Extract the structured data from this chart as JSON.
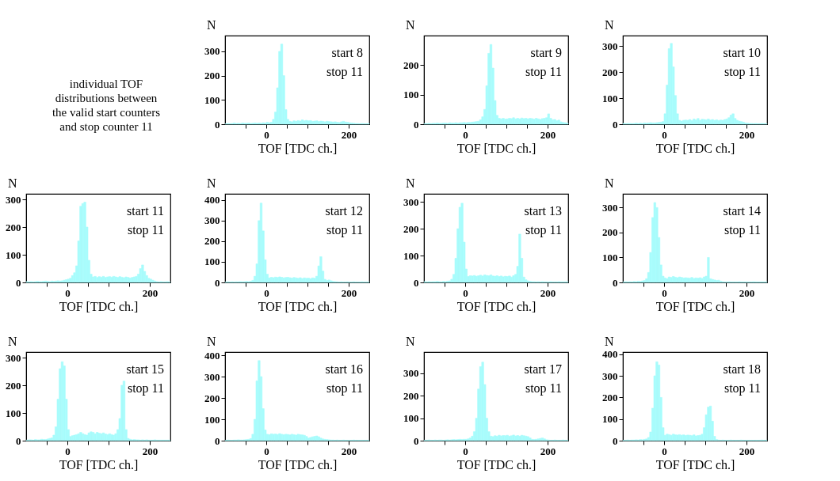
{
  "chart_data": [
    {
      "type": "other",
      "annotations": [
        "individual TOF\ndistributions between\nthe valid start counters\nand stop counter 11"
      ]
    },
    {
      "type": "histogram",
      "color": "#a8fcfc",
      "xlabel": "TOF   [TDC ch.]",
      "ylabel": "N",
      "annotations": [
        "start  8",
        "stop 11"
      ],
      "xlim": [
        -100,
        250
      ],
      "ylim": [
        0,
        365
      ],
      "xticks": [
        {
          "value": -50,
          "label": null
        },
        0,
        {
          "value": 50,
          "label": null
        },
        {
          "value": 100,
          "label": null
        },
        {
          "value": 150,
          "label": null
        },
        200
      ],
      "yticks": [
        0,
        100,
        200,
        300
      ],
      "bins": [
        -100,
        -95,
        -90,
        -85,
        -80,
        -75,
        -70,
        -65,
        -60,
        -55,
        -50,
        -45,
        -40,
        -35,
        -30,
        -25,
        -20,
        -15,
        -10,
        -5,
        0,
        5,
        10,
        15,
        20,
        25,
        30,
        35,
        40,
        45,
        50,
        55,
        60,
        65,
        70,
        75,
        80,
        85,
        90,
        95,
        100,
        105,
        110,
        115,
        120,
        125,
        130,
        135,
        140,
        145,
        150,
        155,
        160,
        165,
        170,
        175,
        180,
        185,
        190,
        195,
        200,
        205,
        210,
        215,
        220,
        225,
        230,
        235,
        240,
        245,
        250
      ],
      "values": [
        2,
        3,
        2,
        3,
        5,
        3,
        4,
        3,
        5,
        4,
        4,
        5,
        3,
        4,
        5,
        4,
        5,
        4,
        6,
        5,
        8,
        6,
        8,
        20,
        50,
        150,
        300,
        330,
        200,
        60,
        20,
        12,
        10,
        14,
        12,
        15,
        13,
        18,
        14,
        16,
        14,
        15,
        12,
        13,
        14,
        11,
        13,
        12,
        10,
        12,
        11,
        10,
        9,
        10,
        8,
        7,
        10,
        12,
        9,
        8,
        6,
        5,
        4,
        3,
        3,
        2,
        3,
        2,
        2,
        3
      ]
    },
    {
      "type": "histogram",
      "color": "#a8fcfc",
      "xlabel": "TOF   [TDC ch.]",
      "ylabel": "N",
      "annotations": [
        "start  9",
        "stop 11"
      ],
      "xlim": [
        -100,
        250
      ],
      "ylim": [
        0,
        300
      ],
      "xticks": [
        {
          "value": -50,
          "label": null
        },
        0,
        {
          "value": 50,
          "label": null
        },
        {
          "value": 100,
          "label": null
        },
        {
          "value": 150,
          "label": null
        },
        200
      ],
      "yticks": [
        0,
        100,
        200
      ],
      "bins": [
        -100,
        -95,
        -90,
        -85,
        -80,
        -75,
        -70,
        -65,
        -60,
        -55,
        -50,
        -45,
        -40,
        -35,
        -30,
        -25,
        -20,
        -15,
        -10,
        -5,
        0,
        5,
        10,
        15,
        20,
        25,
        30,
        35,
        40,
        45,
        50,
        55,
        60,
        65,
        70,
        75,
        80,
        85,
        90,
        95,
        100,
        105,
        110,
        115,
        120,
        125,
        130,
        135,
        140,
        145,
        150,
        155,
        160,
        165,
        170,
        175,
        180,
        185,
        190,
        195,
        200,
        205,
        210,
        215,
        220,
        225,
        230,
        235,
        240,
        245,
        250
      ],
      "values": [
        2,
        2,
        3,
        2,
        3,
        3,
        4,
        3,
        3,
        4,
        4,
        3,
        5,
        4,
        4,
        5,
        4,
        5,
        5,
        6,
        5,
        6,
        6,
        7,
        8,
        9,
        10,
        15,
        25,
        50,
        130,
        240,
        270,
        190,
        80,
        30,
        20,
        18,
        20,
        17,
        18,
        20,
        19,
        22,
        18,
        20,
        18,
        21,
        19,
        20,
        18,
        20,
        19,
        17,
        20,
        18,
        16,
        19,
        20,
        22,
        35,
        20,
        15,
        16,
        12,
        14,
        8,
        6,
        5,
        4
      ]
    },
    {
      "type": "histogram",
      "color": "#a8fcfc",
      "xlabel": "TOF   [TDC ch.]",
      "ylabel": "N",
      "annotations": [
        "start 10",
        "stop 11"
      ],
      "xlim": [
        -100,
        250
      ],
      "ylim": [
        0,
        340
      ],
      "xticks": [
        {
          "value": -50,
          "label": null
        },
        0,
        {
          "value": 50,
          "label": null
        },
        {
          "value": 100,
          "label": null
        },
        {
          "value": 150,
          "label": null
        },
        200
      ],
      "yticks": [
        0,
        100,
        200,
        300
      ],
      "bins": [
        -100,
        -95,
        -90,
        -85,
        -80,
        -75,
        -70,
        -65,
        -60,
        -55,
        -50,
        -45,
        -40,
        -35,
        -30,
        -25,
        -20,
        -15,
        -10,
        -5,
        0,
        5,
        10,
        15,
        20,
        25,
        30,
        35,
        40,
        45,
        50,
        55,
        60,
        65,
        70,
        75,
        80,
        85,
        90,
        95,
        100,
        105,
        110,
        115,
        120,
        125,
        130,
        135,
        140,
        145,
        150,
        155,
        160,
        165,
        170,
        175,
        180,
        185,
        190,
        195,
        200,
        205,
        210,
        215,
        220,
        225,
        230,
        235,
        240,
        245,
        250
      ],
      "values": [
        3,
        2,
        3,
        3,
        2,
        3,
        4,
        3,
        4,
        3,
        5,
        4,
        5,
        6,
        5,
        5,
        6,
        7,
        8,
        10,
        40,
        150,
        290,
        310,
        220,
        110,
        40,
        15,
        12,
        15,
        16,
        15,
        18,
        14,
        20,
        17,
        22,
        15,
        19,
        18,
        17,
        20,
        16,
        18,
        15,
        17,
        14,
        16,
        15,
        18,
        20,
        25,
        35,
        40,
        22,
        15,
        12,
        10,
        8,
        5,
        4,
        3,
        3,
        2,
        3,
        2,
        2,
        3,
        2,
        2
      ]
    },
    {
      "type": "histogram",
      "color": "#a8fcfc",
      "xlabel": "TOF   [TDC ch.]",
      "ylabel": "N",
      "annotations": [
        "start 11",
        "stop 11"
      ],
      "xlim": [
        -100,
        250
      ],
      "ylim": [
        0,
        320
      ],
      "xticks": [
        {
          "value": -50,
          "label": null
        },
        0,
        {
          "value": 50,
          "label": null
        },
        {
          "value": 100,
          "label": null
        },
        {
          "value": 150,
          "label": null
        },
        200
      ],
      "yticks": [
        0,
        100,
        200,
        300
      ],
      "bins": [
        -100,
        -95,
        -90,
        -85,
        -80,
        -75,
        -70,
        -65,
        -60,
        -55,
        -50,
        -45,
        -40,
        -35,
        -30,
        -25,
        -20,
        -15,
        -10,
        -5,
        0,
        5,
        10,
        15,
        20,
        25,
        30,
        35,
        40,
        45,
        50,
        55,
        60,
        65,
        70,
        75,
        80,
        85,
        90,
        95,
        100,
        105,
        110,
        115,
        120,
        125,
        130,
        135,
        140,
        145,
        150,
        155,
        160,
        165,
        170,
        175,
        180,
        185,
        190,
        195,
        200,
        205,
        210,
        215,
        220,
        225,
        230,
        235,
        240,
        245,
        250
      ],
      "values": [
        3,
        2,
        3,
        2,
        3,
        4,
        3,
        3,
        4,
        5,
        4,
        3,
        5,
        4,
        5,
        6,
        5,
        6,
        8,
        10,
        12,
        15,
        25,
        35,
        60,
        150,
        275,
        285,
        290,
        200,
        80,
        30,
        20,
        22,
        18,
        21,
        19,
        22,
        18,
        20,
        21,
        19,
        22,
        20,
        18,
        21,
        19,
        17,
        20,
        18,
        16,
        18,
        20,
        22,
        30,
        50,
        63,
        40,
        25,
        15,
        12,
        8,
        5,
        3,
        2,
        3,
        2,
        2,
        3,
        2
      ]
    },
    {
      "type": "histogram",
      "color": "#a8fcfc",
      "xlabel": "TOF   [TDC ch.]",
      "ylabel": "N",
      "annotations": [
        "start 12",
        "stop 11"
      ],
      "xlim": [
        -100,
        250
      ],
      "ylim": [
        0,
        430
      ],
      "xticks": [
        {
          "value": -50,
          "label": null
        },
        0,
        {
          "value": 50,
          "label": null
        },
        {
          "value": 100,
          "label": null
        },
        {
          "value": 150,
          "label": null
        },
        200
      ],
      "yticks": [
        0,
        100,
        200,
        300,
        400
      ],
      "bins": [
        -100,
        -95,
        -90,
        -85,
        -80,
        -75,
        -70,
        -65,
        -60,
        -55,
        -50,
        -45,
        -40,
        -35,
        -30,
        -25,
        -20,
        -15,
        -10,
        -5,
        0,
        5,
        10,
        15,
        20,
        25,
        30,
        35,
        40,
        45,
        50,
        55,
        60,
        65,
        70,
        75,
        80,
        85,
        90,
        95,
        100,
        105,
        110,
        115,
        120,
        125,
        130,
        135,
        140,
        145,
        150,
        155,
        160,
        165,
        170,
        175,
        180,
        185,
        190,
        195,
        200,
        205,
        210,
        215,
        220,
        225,
        230,
        235,
        240,
        245,
        250
      ],
      "values": [
        2,
        3,
        2,
        3,
        2,
        3,
        3,
        4,
        3,
        4,
        5,
        4,
        6,
        10,
        30,
        90,
        300,
        385,
        250,
        110,
        40,
        22,
        25,
        23,
        26,
        24,
        27,
        25,
        22,
        24,
        25,
        23,
        21,
        24,
        22,
        20,
        23,
        19,
        22,
        20,
        21,
        18,
        22,
        20,
        30,
        80,
        125,
        55,
        15,
        10,
        12,
        8,
        5,
        4,
        3,
        2,
        3,
        2,
        2,
        3,
        2,
        2,
        3,
        2,
        2,
        2,
        3,
        2,
        2,
        2
      ]
    },
    {
      "type": "histogram",
      "color": "#a8fcfc",
      "xlabel": "TOF   [TDC ch.]",
      "ylabel": "N",
      "annotations": [
        "start 13",
        "stop 11"
      ],
      "xlim": [
        -100,
        250
      ],
      "ylim": [
        0,
        330
      ],
      "xticks": [
        {
          "value": -50,
          "label": null
        },
        0,
        {
          "value": 50,
          "label": null
        },
        {
          "value": 100,
          "label": null
        },
        {
          "value": 150,
          "label": null
        },
        200
      ],
      "yticks": [
        0,
        100,
        200,
        300
      ],
      "bins": [
        -100,
        -95,
        -90,
        -85,
        -80,
        -75,
        -70,
        -65,
        -60,
        -55,
        -50,
        -45,
        -40,
        -35,
        -30,
        -25,
        -20,
        -15,
        -10,
        -5,
        0,
        5,
        10,
        15,
        20,
        25,
        30,
        35,
        40,
        45,
        50,
        55,
        60,
        65,
        70,
        75,
        80,
        85,
        90,
        95,
        100,
        105,
        110,
        115,
        120,
        125,
        130,
        135,
        140,
        145,
        150,
        155,
        160,
        165,
        170,
        175,
        180,
        185,
        190,
        195,
        200,
        205,
        210,
        215,
        220,
        225,
        230,
        235,
        240,
        245,
        250
      ],
      "values": [
        3,
        2,
        3,
        2,
        3,
        3,
        4,
        3,
        2,
        4,
        3,
        5,
        6,
        12,
        30,
        90,
        200,
        280,
        295,
        150,
        50,
        22,
        25,
        24,
        26,
        23,
        25,
        27,
        24,
        28,
        26,
        25,
        28,
        24,
        23,
        25,
        22,
        24,
        21,
        23,
        22,
        24,
        20,
        25,
        30,
        60,
        180,
        90,
        20,
        10,
        6,
        4,
        3,
        3,
        2,
        3,
        2,
        3,
        2,
        2,
        2,
        3,
        2,
        2,
        2,
        3,
        2,
        2,
        2,
        2
      ]
    },
    {
      "type": "histogram",
      "color": "#a8fcfc",
      "xlabel": "TOF   [TDC ch.]",
      "ylabel": "N",
      "annotations": [
        "start 14",
        "stop 11"
      ],
      "xlim": [
        -100,
        250
      ],
      "ylim": [
        0,
        355
      ],
      "xticks": [
        {
          "value": -50,
          "label": null
        },
        0,
        {
          "value": 50,
          "label": null
        },
        {
          "value": 100,
          "label": null
        },
        {
          "value": 150,
          "label": null
        },
        200
      ],
      "yticks": [
        0,
        100,
        200,
        300
      ],
      "bins": [
        -100,
        -95,
        -90,
        -85,
        -80,
        -75,
        -70,
        -65,
        -60,
        -55,
        -50,
        -45,
        -40,
        -35,
        -30,
        -25,
        -20,
        -15,
        -10,
        -5,
        0,
        5,
        10,
        15,
        20,
        25,
        30,
        35,
        40,
        45,
        50,
        55,
        60,
        65,
        70,
        75,
        80,
        85,
        90,
        95,
        100,
        105,
        110,
        115,
        120,
        125,
        130,
        135,
        140,
        145,
        150,
        155,
        160,
        165,
        170,
        175,
        180,
        185,
        190,
        195,
        200,
        205,
        210,
        215,
        220,
        225,
        230,
        235,
        240,
        245,
        250
      ],
      "values": [
        2,
        3,
        2,
        3,
        2,
        4,
        3,
        5,
        4,
        6,
        8,
        15,
        40,
        120,
        260,
        320,
        300,
        180,
        70,
        25,
        18,
        15,
        22,
        20,
        24,
        21,
        19,
        22,
        20,
        18,
        19,
        18,
        17,
        20,
        16,
        18,
        17,
        19,
        16,
        22,
        25,
        100,
        15,
        12,
        10,
        8,
        9,
        5,
        3,
        2,
        2,
        3,
        2,
        2,
        2,
        2,
        3,
        2,
        2,
        2,
        2,
        2,
        2,
        3,
        2,
        2,
        2,
        2,
        2,
        2
      ]
    },
    {
      "type": "histogram",
      "color": "#a8fcfc",
      "xlabel": "TOF   [TDC ch.]",
      "ylabel": "N",
      "annotations": [
        "start 15",
        "stop 11"
      ],
      "xlim": [
        -100,
        250
      ],
      "ylim": [
        0,
        320
      ],
      "xticks": [
        {
          "value": -50,
          "label": null
        },
        0,
        {
          "value": 50,
          "label": null
        },
        {
          "value": 100,
          "label": null
        },
        {
          "value": 150,
          "label": null
        },
        200
      ],
      "yticks": [
        0,
        100,
        200,
        300
      ],
      "bins": [
        -100,
        -95,
        -90,
        -85,
        -80,
        -75,
        -70,
        -65,
        -60,
        -55,
        -50,
        -45,
        -40,
        -35,
        -30,
        -25,
        -20,
        -15,
        -10,
        -5,
        0,
        5,
        10,
        15,
        20,
        25,
        30,
        35,
        40,
        45,
        50,
        55,
        60,
        65,
        70,
        75,
        80,
        85,
        90,
        95,
        100,
        105,
        110,
        115,
        120,
        125,
        130,
        135,
        140,
        145,
        150,
        155,
        160,
        165,
        170,
        175,
        180,
        185,
        190,
        195,
        200,
        205,
        210,
        215,
        220,
        225,
        230,
        235,
        240,
        245,
        250
      ],
      "values": [
        2,
        3,
        3,
        2,
        4,
        3,
        3,
        5,
        4,
        4,
        6,
        8,
        10,
        20,
        50,
        150,
        260,
        285,
        270,
        150,
        40,
        15,
        18,
        20,
        22,
        25,
        30,
        25,
        22,
        20,
        28,
        32,
        30,
        25,
        30,
        27,
        25,
        28,
        24,
        22,
        25,
        22,
        20,
        25,
        40,
        80,
        200,
        215,
        40,
        8,
        5,
        3,
        4,
        3,
        3,
        2,
        3,
        2,
        3,
        2,
        2,
        2,
        3,
        2,
        2,
        2,
        2,
        2,
        2,
        2
      ]
    },
    {
      "type": "histogram",
      "color": "#a8fcfc",
      "xlabel": "TOF   [TDC ch.]",
      "ylabel": "N",
      "annotations": [
        "start 16",
        "stop 11"
      ],
      "xlim": [
        -100,
        250
      ],
      "ylim": [
        0,
        415
      ],
      "xticks": [
        {
          "value": -50,
          "label": null
        },
        0,
        {
          "value": 50,
          "label": null
        },
        {
          "value": 100,
          "label": null
        },
        {
          "value": 150,
          "label": null
        },
        200
      ],
      "yticks": [
        0,
        100,
        200,
        300,
        400
      ],
      "bins": [
        -100,
        -95,
        -90,
        -85,
        -80,
        -75,
        -70,
        -65,
        -60,
        -55,
        -50,
        -45,
        -40,
        -35,
        -30,
        -25,
        -20,
        -15,
        -10,
        -5,
        0,
        5,
        10,
        15,
        20,
        25,
        30,
        35,
        40,
        45,
        50,
        55,
        60,
        65,
        70,
        75,
        80,
        85,
        90,
        95,
        100,
        105,
        110,
        115,
        120,
        125,
        130,
        135,
        140,
        145,
        150,
        155,
        160,
        165,
        170,
        175,
        180,
        185,
        190,
        195,
        200,
        205,
        210,
        215,
        220,
        225,
        230,
        235,
        240,
        245,
        250
      ],
      "values": [
        2,
        3,
        2,
        2,
        3,
        3,
        4,
        3,
        3,
        4,
        5,
        6,
        10,
        30,
        100,
        280,
        375,
        300,
        150,
        50,
        30,
        28,
        32,
        30,
        31,
        29,
        33,
        30,
        28,
        30,
        29,
        27,
        30,
        28,
        26,
        30,
        28,
        27,
        25,
        20,
        12,
        15,
        18,
        20,
        22,
        18,
        12,
        8,
        6,
        5,
        4,
        3,
        3,
        2,
        3,
        2,
        2,
        3,
        2,
        2,
        2,
        2,
        3,
        2,
        2,
        2,
        2,
        2,
        2,
        2
      ]
    },
    {
      "type": "histogram",
      "color": "#a8fcfc",
      "xlabel": "TOF   [TDC ch.]",
      "ylabel": "N",
      "annotations": [
        "start 17",
        "stop 11"
      ],
      "xlim": [
        -100,
        250
      ],
      "ylim": [
        0,
        395
      ],
      "xticks": [
        {
          "value": -50,
          "label": null
        },
        0,
        {
          "value": 50,
          "label": null
        },
        {
          "value": 100,
          "label": null
        },
        {
          "value": 150,
          "label": null
        },
        200
      ],
      "yticks": [
        0,
        100,
        200,
        300
      ],
      "bins": [
        -100,
        -95,
        -90,
        -85,
        -80,
        -75,
        -70,
        -65,
        -60,
        -55,
        -50,
        -45,
        -40,
        -35,
        -30,
        -25,
        -20,
        -15,
        -10,
        -5,
        0,
        5,
        10,
        15,
        20,
        25,
        30,
        35,
        40,
        45,
        50,
        55,
        60,
        65,
        70,
        75,
        80,
        85,
        90,
        95,
        100,
        105,
        110,
        115,
        120,
        125,
        130,
        135,
        140,
        145,
        150,
        155,
        160,
        165,
        170,
        175,
        180,
        185,
        190,
        195,
        200,
        205,
        210,
        215,
        220,
        225,
        230,
        235,
        240,
        245,
        250
      ],
      "values": [
        2,
        2,
        3,
        2,
        2,
        3,
        2,
        3,
        3,
        2,
        3,
        4,
        3,
        4,
        5,
        4,
        5,
        6,
        5,
        6,
        6,
        8,
        12,
        20,
        40,
        100,
        230,
        330,
        350,
        250,
        100,
        40,
        20,
        18,
        22,
        20,
        24,
        21,
        23,
        22,
        24,
        20,
        22,
        25,
        21,
        23,
        20,
        24,
        22,
        20,
        18,
        12,
        6,
        5,
        6,
        8,
        10,
        12,
        8,
        4,
        3,
        2,
        2,
        3,
        2,
        2,
        2,
        3,
        2,
        2
      ]
    },
    {
      "type": "histogram",
      "color": "#a8fcfc",
      "xlabel": "TOF   [TDC ch.]",
      "ylabel": "N",
      "annotations": [
        "start 18",
        "stop 11"
      ],
      "xlim": [
        -100,
        250
      ],
      "ylim": [
        0,
        410
      ],
      "xticks": [
        {
          "value": -50,
          "label": null
        },
        0,
        {
          "value": 50,
          "label": null
        },
        {
          "value": 100,
          "label": null
        },
        {
          "value": 150,
          "label": null
        },
        200
      ],
      "yticks": [
        0,
        100,
        200,
        300,
        400
      ],
      "bins": [
        -100,
        -95,
        -90,
        -85,
        -80,
        -75,
        -70,
        -65,
        -60,
        -55,
        -50,
        -45,
        -40,
        -35,
        -30,
        -25,
        -20,
        -15,
        -10,
        -5,
        0,
        5,
        10,
        15,
        20,
        25,
        30,
        35,
        40,
        45,
        50,
        55,
        60,
        65,
        70,
        75,
        80,
        85,
        90,
        95,
        100,
        105,
        110,
        115,
        120,
        125,
        130,
        135,
        140,
        145,
        150,
        155,
        160,
        165,
        170,
        175,
        180,
        185,
        190,
        195,
        200,
        205,
        210,
        215,
        220,
        225,
        230,
        235,
        240,
        245,
        250
      ],
      "values": [
        2,
        2,
        3,
        2,
        3,
        3,
        4,
        3,
        5,
        4,
        6,
        8,
        15,
        40,
        150,
        300,
        365,
        350,
        200,
        60,
        25,
        30,
        28,
        25,
        30,
        27,
        26,
        28,
        25,
        27,
        24,
        26,
        25,
        23,
        27,
        22,
        24,
        25,
        30,
        60,
        120,
        155,
        160,
        90,
        20,
        5,
        3,
        2,
        3,
        2,
        2,
        2,
        3,
        2,
        2,
        2,
        2,
        3,
        2,
        2,
        2,
        2,
        2,
        2,
        2,
        2,
        2,
        3,
        2,
        2
      ]
    }
  ]
}
